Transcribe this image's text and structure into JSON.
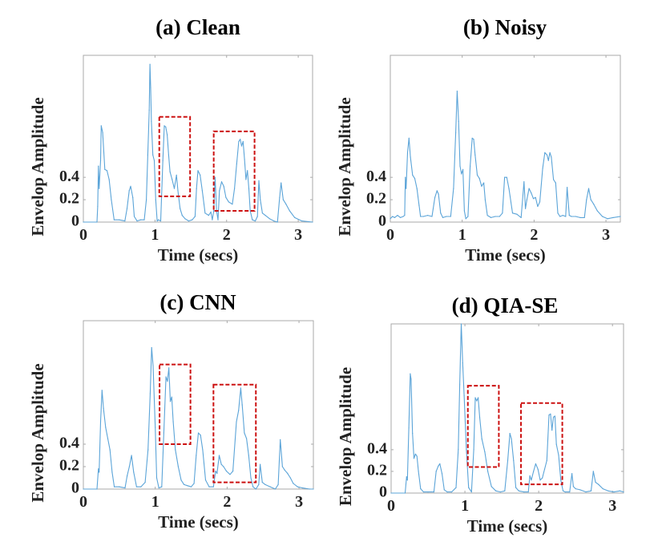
{
  "figure": {
    "colors": {
      "line": "#5ba4d8",
      "highlight_box": "#cc1111",
      "axes": "#a9a9a9",
      "text": "#222222"
    }
  },
  "chart_data": [
    {
      "id": "a",
      "type": "line",
      "title": "(a) Clean",
      "xlabel": "Time (secs)",
      "ylabel": "Envelop Amplitude",
      "xlim": [
        0,
        3.2
      ],
      "ylim": [
        0,
        1.49
      ],
      "xticks": [
        0,
        1,
        2,
        3
      ],
      "xtick_labels": [
        "0",
        "1",
        "2",
        "3"
      ],
      "yticks": [
        0,
        0.2,
        0.4
      ],
      "ytick_labels": [
        "0",
        "0.2",
        "0.4"
      ],
      "grid": false,
      "x": [
        0,
        0.19,
        0.2,
        0.21,
        0.22,
        0.24,
        0.25,
        0.27,
        0.3,
        0.33,
        0.36,
        0.39,
        0.43,
        0.5,
        0.58,
        0.61,
        0.64,
        0.66,
        0.69,
        0.71,
        0.75,
        0.8,
        0.85,
        0.88,
        0.9,
        0.92,
        0.93,
        0.94,
        0.95,
        0.97,
        0.99,
        1.01,
        1.03,
        1.05,
        1.08,
        1.11,
        1.13,
        1.15,
        1.17,
        1.19,
        1.21,
        1.24,
        1.27,
        1.3,
        1.32,
        1.35,
        1.38,
        1.42,
        1.47,
        1.52,
        1.56,
        1.58,
        1.6,
        1.63,
        1.66,
        1.7,
        1.75,
        1.78,
        1.8,
        1.82,
        1.84,
        1.86,
        1.88,
        1.9,
        1.93,
        1.96,
        1.99,
        2.03,
        2.08,
        2.11,
        2.14,
        2.17,
        2.19,
        2.21,
        2.23,
        2.25,
        2.27,
        2.29,
        2.31,
        2.33,
        2.36,
        2.4,
        2.43,
        2.45,
        2.47,
        2.5,
        2.54,
        2.6,
        2.66,
        2.71,
        2.74,
        2.76,
        2.79,
        2.83,
        2.88,
        2.95,
        3.05,
        3.2
      ],
      "y": [
        0,
        0,
        0.14,
        0.5,
        0.3,
        0.55,
        0.86,
        0.8,
        0.47,
        0.46,
        0.38,
        0.2,
        0.02,
        0.02,
        0.01,
        0.12,
        0.28,
        0.32,
        0.22,
        0.05,
        0.01,
        0.02,
        0.02,
        0.2,
        0.6,
        1.0,
        1.41,
        1.2,
        0.9,
        0.6,
        0.55,
        0.2,
        0.01,
        0.02,
        0.01,
        0.55,
        0.86,
        0.85,
        0.78,
        0.6,
        0.45,
        0.38,
        0.3,
        0.42,
        0.28,
        0.12,
        0.06,
        0.03,
        0.01,
        0.02,
        0.05,
        0.3,
        0.46,
        0.42,
        0.28,
        0.08,
        0.06,
        0.09,
        0.02,
        0.1,
        0.4,
        0.1,
        0.02,
        0.28,
        0.36,
        0.32,
        0.22,
        0.18,
        0.16,
        0.3,
        0.52,
        0.72,
        0.74,
        0.68,
        0.72,
        0.56,
        0.38,
        0.46,
        0.3,
        0.1,
        0.02,
        0.01,
        0.05,
        0.37,
        0.2,
        0.08,
        0.06,
        0.03,
        0.01,
        0.0,
        0.22,
        0.35,
        0.2,
        0.16,
        0.1,
        0.04,
        0.01,
        0.0
      ],
      "highlight_boxes": [
        {
          "x0": 1.06,
          "x1": 1.49,
          "y0": 0.23,
          "y1": 0.94
        },
        {
          "x0": 1.82,
          "x1": 2.39,
          "y0": 0.1,
          "y1": 0.81
        }
      ]
    },
    {
      "id": "b",
      "type": "line",
      "title": "(b) Noisy",
      "xlabel": "Time (secs)",
      "ylabel": "Envelop Amplitude",
      "xlim": [
        0,
        3.2
      ],
      "ylim": [
        0,
        1.49
      ],
      "xticks": [
        0,
        1,
        2,
        3
      ],
      "xtick_labels": [
        "0",
        "1",
        "2",
        "3"
      ],
      "yticks": [
        0,
        0.2,
        0.4
      ],
      "ytick_labels": [
        "0",
        "0.2",
        "0.4"
      ],
      "grid": false,
      "x": [
        0,
        0.03,
        0.06,
        0.1,
        0.14,
        0.18,
        0.2,
        0.21,
        0.22,
        0.24,
        0.26,
        0.28,
        0.31,
        0.34,
        0.37,
        0.4,
        0.42,
        0.46,
        0.52,
        0.58,
        0.62,
        0.65,
        0.67,
        0.7,
        0.73,
        0.78,
        0.84,
        0.88,
        0.91,
        0.93,
        0.95,
        0.97,
        0.99,
        1.01,
        1.03,
        1.05,
        1.08,
        1.11,
        1.14,
        1.16,
        1.18,
        1.21,
        1.24,
        1.27,
        1.3,
        1.32,
        1.35,
        1.4,
        1.46,
        1.52,
        1.56,
        1.59,
        1.62,
        1.65,
        1.7,
        1.76,
        1.82,
        1.86,
        1.88,
        1.9,
        1.93,
        1.96,
        1.99,
        2.02,
        2.05,
        2.08,
        2.12,
        2.15,
        2.18,
        2.2,
        2.22,
        2.24,
        2.27,
        2.3,
        2.33,
        2.36,
        2.4,
        2.44,
        2.46,
        2.49,
        2.52,
        2.58,
        2.64,
        2.7,
        2.73,
        2.76,
        2.79,
        2.83,
        2.88,
        2.95,
        3.02,
        3.1,
        3.2
      ],
      "y": [
        0.03,
        0.05,
        0.04,
        0.06,
        0.04,
        0.05,
        0.06,
        0.4,
        0.3,
        0.62,
        0.75,
        0.58,
        0.42,
        0.39,
        0.3,
        0.15,
        0.05,
        0.05,
        0.06,
        0.05,
        0.22,
        0.28,
        0.25,
        0.08,
        0.04,
        0.05,
        0.05,
        0.3,
        0.8,
        1.17,
        0.9,
        0.5,
        0.43,
        0.47,
        0.1,
        0.03,
        0.05,
        0.5,
        0.75,
        0.74,
        0.6,
        0.42,
        0.39,
        0.32,
        0.35,
        0.2,
        0.06,
        0.04,
        0.05,
        0.05,
        0.08,
        0.4,
        0.4,
        0.3,
        0.08,
        0.07,
        0.04,
        0.36,
        0.12,
        0.2,
        0.3,
        0.26,
        0.21,
        0.22,
        0.14,
        0.18,
        0.48,
        0.62,
        0.6,
        0.55,
        0.62,
        0.58,
        0.38,
        0.35,
        0.08,
        0.05,
        0.06,
        0.05,
        0.31,
        0.06,
        0.05,
        0.05,
        0.04,
        0.04,
        0.2,
        0.3,
        0.2,
        0.16,
        0.1,
        0.05,
        0.03,
        0.04,
        0.05
      ]
    },
    {
      "id": "c",
      "type": "line",
      "title": "(c) CNN",
      "xlabel": "Time (secs)",
      "ylabel": "Envelop Amplitude",
      "xlim": [
        0,
        3.2
      ],
      "ylim": [
        0,
        1.5
      ],
      "xticks": [
        0,
        1,
        2,
        3
      ],
      "xtick_labels": [
        "0",
        "1",
        "2",
        "3"
      ],
      "yticks": [
        0,
        0.2,
        0.4
      ],
      "ytick_labels": [
        "0",
        "0.2",
        "0.4"
      ],
      "grid": false,
      "x": [
        0,
        0.19,
        0.21,
        0.22,
        0.24,
        0.26,
        0.28,
        0.31,
        0.34,
        0.37,
        0.4,
        0.43,
        0.5,
        0.58,
        0.61,
        0.64,
        0.67,
        0.7,
        0.74,
        0.8,
        0.86,
        0.9,
        0.93,
        0.95,
        0.97,
        1.0,
        1.02,
        1.05,
        1.09,
        1.12,
        1.15,
        1.17,
        1.19,
        1.21,
        1.23,
        1.25,
        1.28,
        1.32,
        1.36,
        1.4,
        1.45,
        1.5,
        1.54,
        1.57,
        1.6,
        1.63,
        1.66,
        1.7,
        1.75,
        1.81,
        1.84,
        1.86,
        1.89,
        1.92,
        1.95,
        1.99,
        2.04,
        2.08,
        2.13,
        2.16,
        2.19,
        2.21,
        2.24,
        2.27,
        2.3,
        2.33,
        2.36,
        2.4,
        2.44,
        2.46,
        2.49,
        2.53,
        2.6,
        2.67,
        2.71,
        2.74,
        2.77,
        2.8,
        2.84,
        2.88,
        2.92,
        2.98,
        3.05,
        3.15,
        3.2
      ],
      "y": [
        0,
        0,
        0.18,
        0.15,
        0.6,
        0.88,
        0.72,
        0.55,
        0.45,
        0.35,
        0.15,
        0.02,
        0.02,
        0.01,
        0.12,
        0.2,
        0.3,
        0.15,
        0.02,
        0.02,
        0.06,
        0.35,
        0.85,
        1.26,
        1.1,
        0.55,
        0.1,
        0.01,
        0.02,
        0.5,
        1.0,
        0.96,
        1.08,
        0.78,
        0.82,
        0.6,
        0.35,
        0.2,
        0.08,
        0.04,
        0.03,
        0.02,
        0.05,
        0.3,
        0.5,
        0.48,
        0.35,
        0.08,
        0.02,
        0.02,
        0.16,
        0.14,
        0.3,
        0.22,
        0.2,
        0.16,
        0.13,
        0.16,
        0.6,
        0.7,
        0.9,
        0.75,
        0.5,
        0.45,
        0.3,
        0.1,
        0.02,
        0.0,
        0.04,
        0.22,
        0.06,
        0.04,
        0.02,
        0.0,
        0.04,
        0.44,
        0.2,
        0.17,
        0.14,
        0.1,
        0.05,
        0.02,
        0.01,
        0.0,
        0.0
      ],
      "highlight_boxes": [
        {
          "x0": 1.06,
          "x1": 1.49,
          "y0": 0.4,
          "y1": 1.11
        },
        {
          "x0": 1.81,
          "x1": 2.4,
          "y0": 0.06,
          "y1": 0.93
        }
      ]
    },
    {
      "id": "d",
      "type": "line",
      "title": "(d) QIA-SE",
      "xlabel": "Time (secs)",
      "ylabel": "Envelop Amplitude",
      "xlim": [
        0,
        3.15
      ],
      "ylim": [
        0,
        1.56
      ],
      "xticks": [
        0,
        1,
        2,
        3
      ],
      "xtick_labels": [
        "0",
        "1",
        "2",
        "3"
      ],
      "yticks": [
        0,
        0.2,
        0.4
      ],
      "ytick_labels": [
        "0",
        "0.2",
        "0.4"
      ],
      "grid": false,
      "x": [
        0,
        0.19,
        0.21,
        0.22,
        0.24,
        0.26,
        0.27,
        0.29,
        0.31,
        0.33,
        0.35,
        0.37,
        0.4,
        0.44,
        0.5,
        0.58,
        0.61,
        0.64,
        0.66,
        0.69,
        0.72,
        0.76,
        0.82,
        0.88,
        0.91,
        0.93,
        0.95,
        0.97,
        0.99,
        1.02,
        1.05,
        1.09,
        1.12,
        1.14,
        1.16,
        1.18,
        1.2,
        1.23,
        1.27,
        1.31,
        1.36,
        1.42,
        1.48,
        1.54,
        1.58,
        1.61,
        1.63,
        1.66,
        1.69,
        1.73,
        1.8,
        1.86,
        1.88,
        1.9,
        1.93,
        1.96,
        1.99,
        2.02,
        2.05,
        2.08,
        2.11,
        2.14,
        2.16,
        2.18,
        2.2,
        2.22,
        2.24,
        2.27,
        2.3,
        2.33,
        2.36,
        2.42,
        2.45,
        2.47,
        2.5,
        2.56,
        2.64,
        2.71,
        2.74,
        2.77,
        2.81,
        2.87,
        2.94,
        3.02,
        3.1,
        3.15
      ],
      "y": [
        0,
        0,
        0.15,
        0.12,
        0.6,
        1.1,
        1.05,
        0.55,
        0.32,
        0.36,
        0.34,
        0.2,
        0.04,
        0.01,
        0.01,
        0.01,
        0.2,
        0.25,
        0.27,
        0.18,
        0.03,
        0.01,
        0.01,
        0.05,
        0.4,
        1.0,
        1.56,
        1.2,
        0.9,
        0.4,
        0.05,
        0.01,
        0.4,
        0.88,
        0.85,
        0.88,
        0.7,
        0.5,
        0.38,
        0.2,
        0.06,
        0.02,
        0.01,
        0.02,
        0.3,
        0.55,
        0.5,
        0.3,
        0.05,
        0.02,
        0.01,
        0.01,
        0.16,
        0.12,
        0.2,
        0.27,
        0.22,
        0.12,
        0.14,
        0.22,
        0.3,
        0.72,
        0.73,
        0.58,
        0.7,
        0.71,
        0.45,
        0.35,
        0.12,
        0.02,
        0.01,
        0.01,
        0.18,
        0.06,
        0.04,
        0.03,
        0.01,
        0.02,
        0.2,
        0.1,
        0.08,
        0.04,
        0.02,
        0.01,
        0.02,
        0.01
      ],
      "highlight_boxes": [
        {
          "x0": 1.04,
          "x1": 1.46,
          "y0": 0.24,
          "y1": 0.99
        },
        {
          "x0": 1.76,
          "x1": 2.32,
          "y0": 0.08,
          "y1": 0.83
        }
      ]
    }
  ]
}
